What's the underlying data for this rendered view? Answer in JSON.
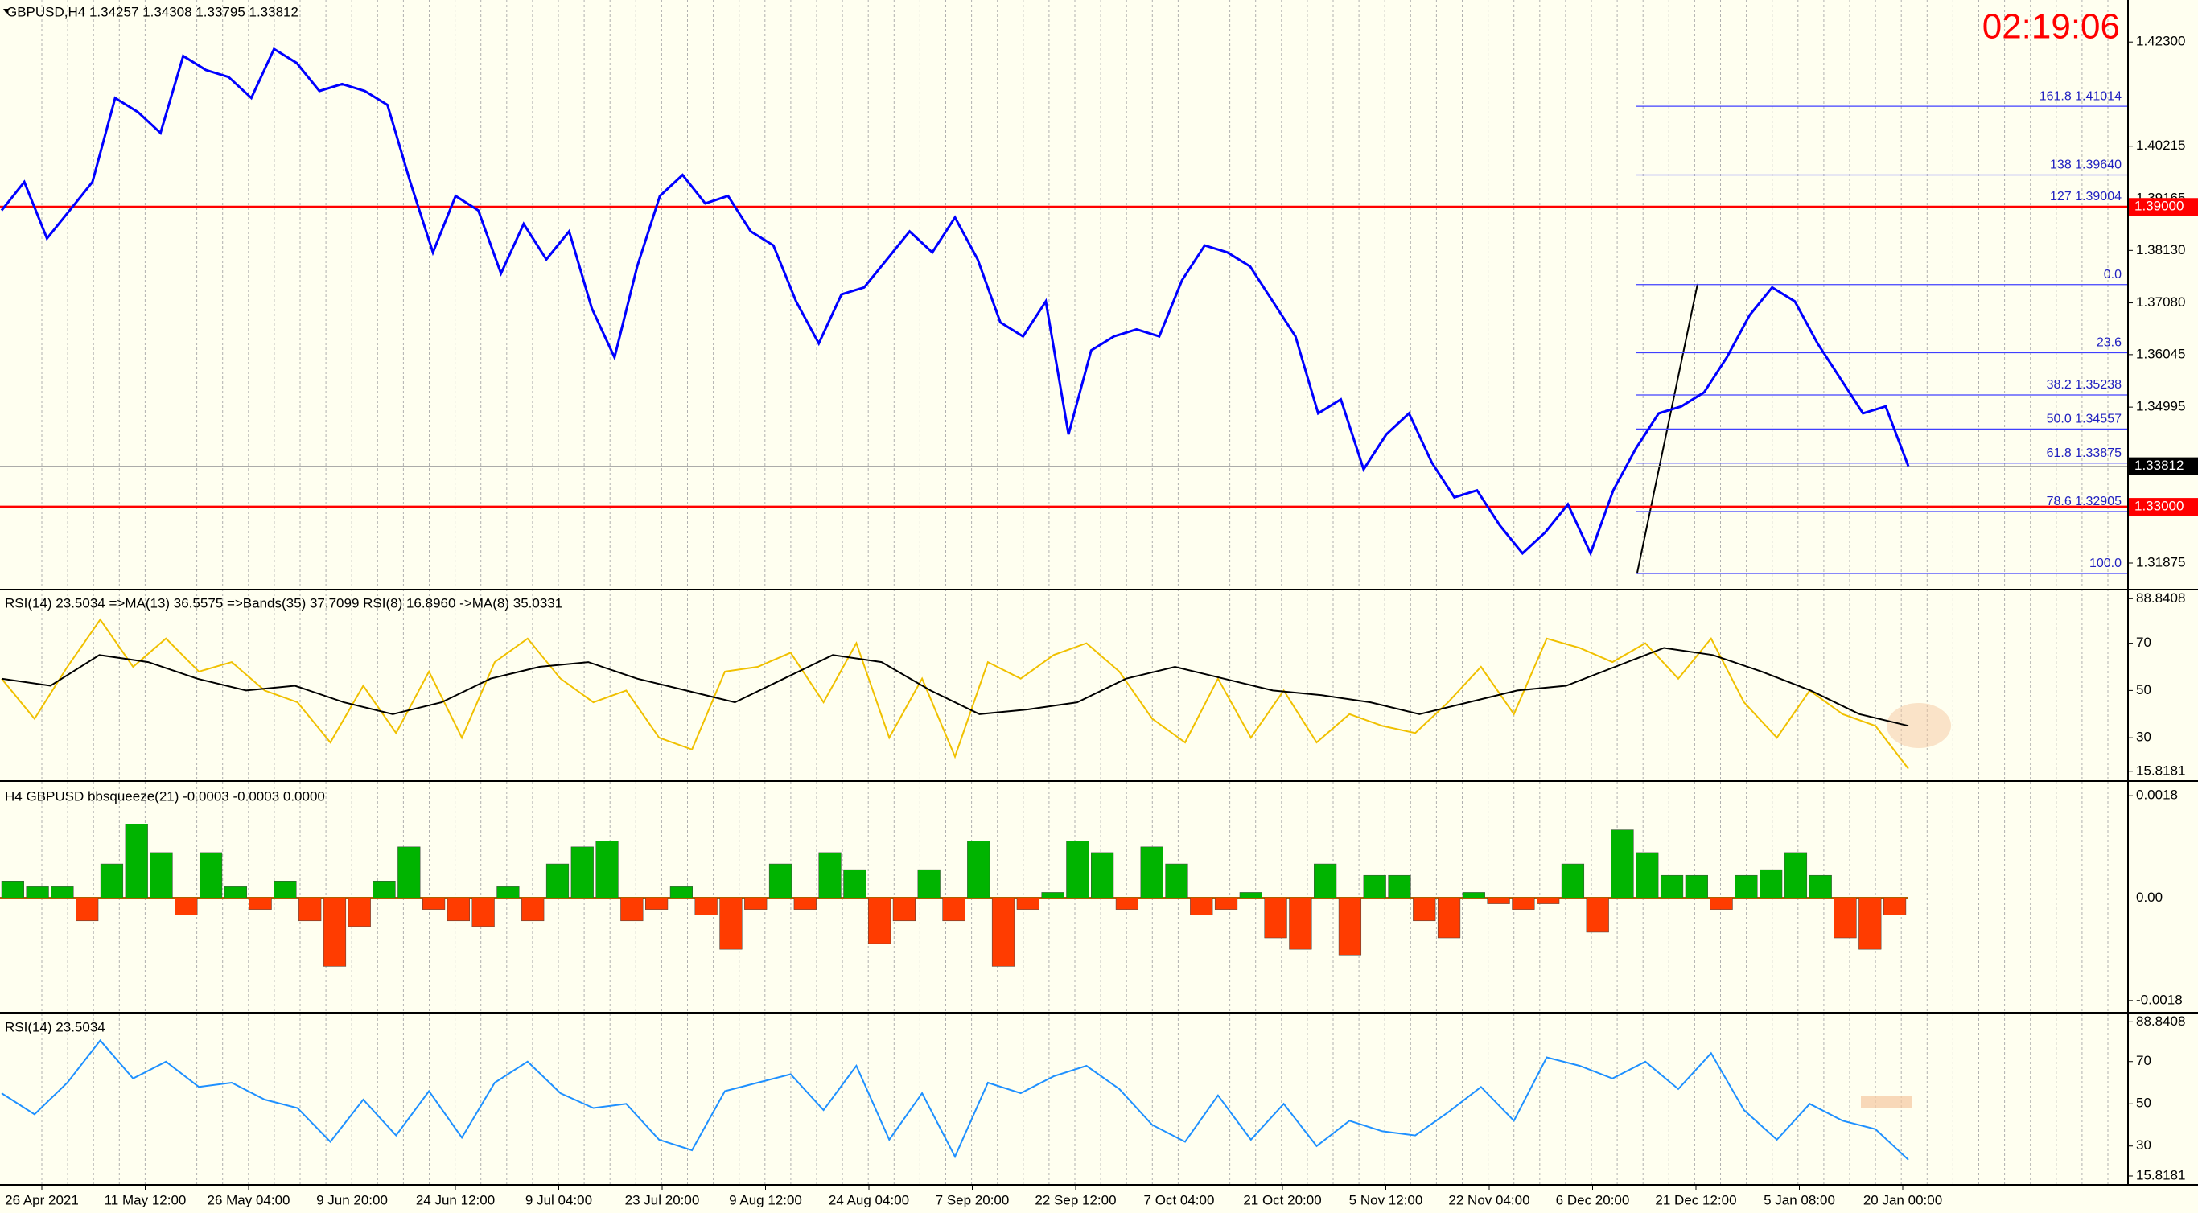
{
  "header": {
    "symbol_text": "GBPUSD,H4  1.34257 1.34308 1.33795 1.33812",
    "clock": "02:19:06"
  },
  "chart_data": [
    {
      "type": "line",
      "ylim": [
        1.3136,
        1.4314
      ],
      "yticks": [
        {
          "value": 1.423,
          "label": "1.42300"
        },
        {
          "value": 1.40215,
          "label": "1.40215"
        },
        {
          "value": 1.39165,
          "label": "1.39165"
        },
        {
          "value": 1.3813,
          "label": "1.38130"
        },
        {
          "value": 1.3708,
          "label": "1.37080"
        },
        {
          "value": 1.36045,
          "label": "1.36045"
        },
        {
          "value": 1.34995,
          "label": "1.34995"
        },
        {
          "value": 1.31875,
          "label": "1.31875"
        }
      ],
      "series": [
        {
          "color": "#0000ff",
          "values": [
            1.3893,
            1.395,
            1.3837,
            1.3893,
            1.395,
            1.4118,
            1.409,
            1.4048,
            1.4202,
            1.4174,
            1.416,
            1.4118,
            1.4216,
            1.4188,
            1.4132,
            1.4146,
            1.4132,
            1.4104,
            1.395,
            1.3809,
            1.3922,
            1.3893,
            1.3767,
            1.3866,
            1.3795,
            1.3851,
            1.3697,
            1.3599,
            1.3781,
            1.3922,
            1.3964,
            1.3907,
            1.3922,
            1.3851,
            1.3823,
            1.3711,
            1.3627,
            1.3725,
            1.3739,
            1.3795,
            1.3851,
            1.3809,
            1.3879,
            1.3795,
            1.3669,
            1.3641,
            1.3711,
            1.3445,
            1.3613,
            1.3641,
            1.3655,
            1.3641,
            1.3753,
            1.3823,
            1.3809,
            1.3781,
            1.3711,
            1.3641,
            1.3487,
            1.3515,
            1.3375,
            1.3445,
            1.3487,
            1.3389,
            1.3319,
            1.3333,
            1.3263,
            1.3207,
            1.3249,
            1.3305,
            1.3207,
            1.3333,
            1.3417,
            1.3487,
            1.3501,
            1.3529,
            1.3599,
            1.3683,
            1.3739,
            1.3711,
            1.3627,
            1.3557,
            1.3487,
            1.3501,
            1.33812
          ]
        }
      ],
      "hlines": [
        {
          "value": 1.39,
          "label": "1.39000",
          "color": "#ff0000"
        },
        {
          "value": 1.33,
          "label": "1.33000",
          "color": "#ff0000"
        }
      ],
      "current": {
        "value": 1.33812,
        "label": "1.33812",
        "color": "#000000"
      },
      "fib": [
        {
          "value": 1.41014,
          "label": "161.8  1.41014"
        },
        {
          "value": 1.3964,
          "label": "138  1.39640"
        },
        {
          "value": 1.39004,
          "label": "127  1.39004"
        },
        {
          "value": 1.37447,
          "label": "0.0"
        },
        {
          "value": 1.36083,
          "label": "23.6"
        },
        {
          "value": 1.35238,
          "label": "38.2  1.35238"
        },
        {
          "value": 1.34557,
          "label": "50.0  1.34557"
        },
        {
          "value": 1.33875,
          "label": "61.8  1.33875"
        },
        {
          "value": 1.32905,
          "label": "78.6  1.32905"
        },
        {
          "value": 1.31667,
          "label": "100.0"
        }
      ]
    },
    {
      "type": "line",
      "title": "RSI(14) 23.5034  =>MA(13) 36.5575  =>Bands(35) 37.7099  RSI(8) 16.8960  ->MA(8) 35.0331",
      "ylim": [
        12,
        92
      ],
      "yticks": [
        88.8408,
        70,
        50,
        30,
        15.8181
      ],
      "series": [
        {
          "color": "#f0c000",
          "values": [
            55,
            38,
            60,
            80,
            60,
            72,
            58,
            62,
            50,
            45,
            28,
            52,
            32,
            58,
            30,
            62,
            72,
            55,
            45,
            50,
            30,
            25,
            58,
            60,
            66,
            45,
            70,
            30,
            55,
            22,
            62,
            55,
            65,
            70,
            58,
            38,
            28,
            55,
            30,
            50,
            28,
            40,
            35,
            32,
            45,
            60,
            40,
            72,
            68,
            62,
            70,
            55,
            72,
            45,
            30,
            50,
            40,
            35,
            16.896
          ]
        },
        {
          "color": "#000000",
          "values": [
            55,
            52,
            65,
            62,
            55,
            50,
            52,
            45,
            40,
            45,
            55,
            60,
            62,
            55,
            50,
            45,
            55,
            65,
            62,
            50,
            40,
            42,
            45,
            55,
            60,
            55,
            50,
            48,
            45,
            40,
            45,
            50,
            52,
            60,
            68,
            65,
            58,
            50,
            40,
            35.0331
          ]
        }
      ]
    },
    {
      "type": "bar",
      "title": "H4 GBPUSD bbsqueeze(21) -0.0003 -0.0003 0.0000",
      "ylim": [
        -0.002,
        0.002
      ],
      "yticks": [
        0.0018,
        {
          "value": 0,
          "label": "0.00"
        },
        -0.0018
      ],
      "color": "#00b400",
      "negative_color": "#ff3c00",
      "values": [
        0.0003,
        0.0002,
        0.0002,
        -0.0004,
        0.0006,
        0.0013,
        0.0008,
        -0.0003,
        0.0008,
        0.0002,
        -0.0002,
        0.0003,
        -0.0004,
        -0.0012,
        -0.0005,
        0.0003,
        0.0009,
        -0.0002,
        -0.0004,
        -0.0005,
        0.0002,
        -0.0004,
        0.0006,
        0.0009,
        0.001,
        -0.0004,
        -0.0002,
        0.0002,
        -0.0003,
        -0.0009,
        -0.0002,
        0.0006,
        -0.0002,
        0.0008,
        0.0005,
        -0.0008,
        -0.0004,
        0.0005,
        -0.0004,
        0.001,
        -0.0012,
        -0.0002,
        0.0001,
        0.001,
        0.0008,
        -0.0002,
        0.0009,
        0.0006,
        -0.0003,
        -0.0002,
        0.0001,
        -0.0007,
        -0.0009,
        0.0006,
        -0.001,
        0.0004,
        0.0004,
        -0.0004,
        -0.0007,
        0.0001,
        -0.0001,
        -0.0002,
        -0.0001,
        0.0006,
        -0.0006,
        0.0012,
        0.0008,
        0.0004,
        0.0004,
        -0.0002,
        0.0004,
        0.0005,
        0.0008,
        0.0004,
        -0.0007,
        -0.0009,
        -0.0003
      ]
    },
    {
      "type": "line",
      "title": "RSI(14) 23.5034",
      "ylim": [
        12,
        92
      ],
      "yticks": [
        88.8408,
        70,
        50,
        30,
        15.8181
      ],
      "series": [
        {
          "color": "#1e90ff",
          "values": [
            55,
            45,
            60,
            80,
            62,
            70,
            58,
            60,
            52,
            48,
            32,
            52,
            35,
            56,
            34,
            60,
            70,
            55,
            48,
            50,
            33,
            28,
            56,
            60,
            64,
            47,
            68,
            33,
            55,
            25,
            60,
            55,
            63,
            68,
            57,
            40,
            32,
            54,
            33,
            50,
            30,
            42,
            37,
            35,
            46,
            58,
            42,
            72,
            68,
            62,
            70,
            57,
            74,
            47,
            33,
            50,
            42,
            38,
            23.5034
          ]
        }
      ]
    }
  ],
  "time_axis": {
    "labels": [
      "26 Apr 2021",
      "11 May 12:00",
      "26 May 04:00",
      "9 Jun 20:00",
      "24 Jun 12:00",
      "9 Jul 04:00",
      "23 Jul 20:00",
      "9 Aug 12:00",
      "24 Aug 04:00",
      "7 Sep 20:00",
      "22 Sep 12:00",
      "7 Oct 04:00",
      "21 Oct 20:00",
      "5 Nov 12:00",
      "22 Nov 04:00",
      "6 Dec 20:00",
      "21 Dec 12:00",
      "5 Jan 08:00",
      "20 Jan 00:00"
    ]
  }
}
